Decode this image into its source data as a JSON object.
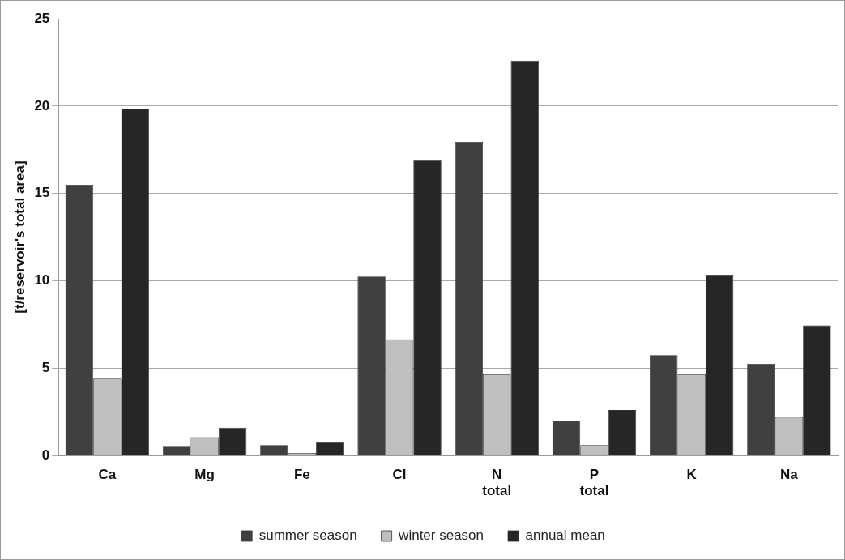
{
  "chart_data": {
    "type": "bar",
    "ylabel": "[t/reservoir's total area]",
    "categories": [
      "Ca",
      "Mg",
      "Fe",
      "Cl",
      "N\ntotal",
      "P\ntotal",
      "K",
      "Na"
    ],
    "series": [
      {
        "name": "summer season",
        "color": "#404040",
        "values": [
          15.5,
          0.55,
          0.6,
          10.25,
          17.95,
          2.0,
          5.75,
          5.25
        ]
      },
      {
        "name": "winter season",
        "color": "#bfbfbf",
        "values": [
          4.4,
          1.05,
          0.15,
          6.65,
          4.65,
          0.6,
          4.65,
          2.2
        ]
      },
      {
        "name": "annual mean",
        "color": "#262626",
        "values": [
          19.85,
          1.6,
          0.75,
          16.9,
          22.6,
          2.6,
          10.35,
          7.45
        ]
      }
    ],
    "ylim": [
      0,
      25
    ],
    "yticks": [
      0,
      5,
      10,
      15,
      20,
      25
    ],
    "grid": "y",
    "legend": "bottom"
  }
}
